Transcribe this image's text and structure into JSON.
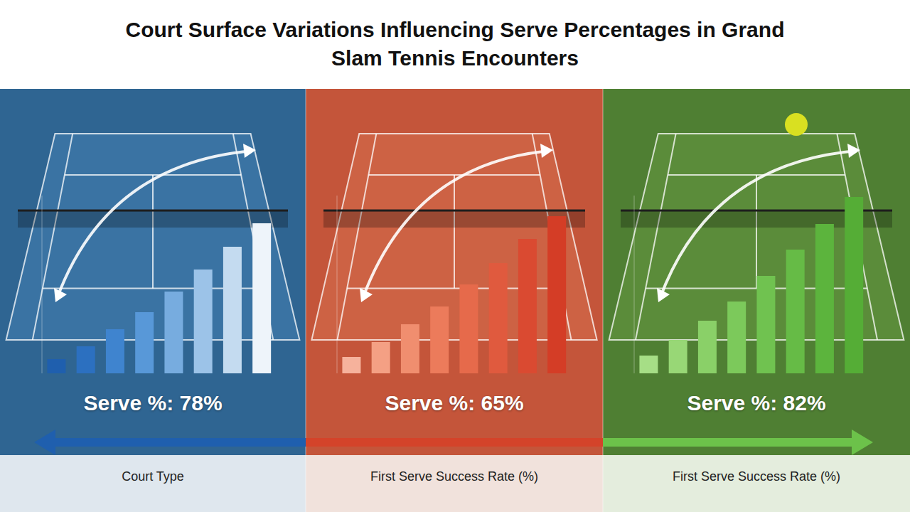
{
  "title": "Court Surface Variations Influencing Serve Percentages in Grand Slam Tennis Encounters",
  "chart_data": [
    {
      "type": "bar",
      "subtitle": "Serve %: 78%",
      "xlabel": "Court Type",
      "categories": [
        null,
        null,
        null,
        null,
        null,
        null,
        null,
        null
      ],
      "values": [
        20,
        38,
        62,
        86,
        115,
        146,
        178,
        211
      ],
      "colors": [
        "#1f5fae",
        "#2c70c0",
        "#3f84cf",
        "#5898d8",
        "#77acdf",
        "#9cc3e8",
        "#c4dbf0",
        "#eef4fa"
      ],
      "ylim": [
        0,
        250
      ],
      "tick_labels": false
    },
    {
      "type": "bar",
      "subtitle": "Serve %: 65%",
      "xlabel": "First Serve Success Rate (%)",
      "categories": [
        null,
        null,
        null,
        null,
        null,
        null,
        null,
        null
      ],
      "values": [
        23,
        44,
        69,
        94,
        125,
        155,
        189,
        221
      ],
      "colors": [
        "#f6b29c",
        "#f4a084",
        "#f08e6f",
        "#ec7b5b",
        "#e66a4b",
        "#e05a3e",
        "#da4a31",
        "#d43d26"
      ],
      "ylim": [
        0,
        250
      ],
      "tick_labels": false
    },
    {
      "type": "bar",
      "subtitle": "Serve %: 82%",
      "xlabel": "First Serve Success Rate (%)",
      "categories": [
        null,
        null,
        null,
        null,
        null,
        null,
        null,
        null
      ],
      "values": [
        25,
        47,
        74,
        101,
        137,
        174,
        210,
        248
      ],
      "colors": [
        "#a6de86",
        "#98d776",
        "#8ad068",
        "#7cc95b",
        "#70c250",
        "#66bb46",
        "#5cb43d",
        "#55ad36"
      ],
      "ylim": [
        0,
        250
      ],
      "tick_labels": false
    }
  ]
}
